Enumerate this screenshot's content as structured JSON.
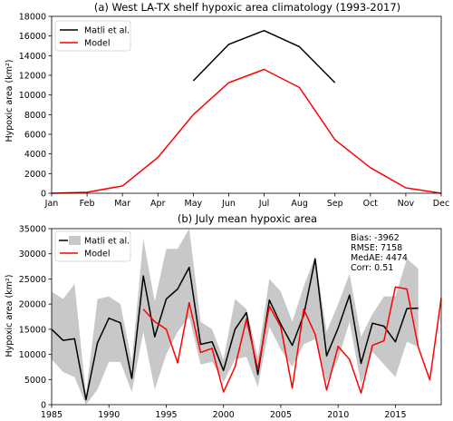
{
  "chart_data": [
    {
      "type": "line",
      "title": "(a) West LA-TX shelf hypoxic area climatology (1993-2017)",
      "xlabel": "",
      "ylabel": "Hypoxic area (km²)",
      "categories": [
        "Jan",
        "Feb",
        "Mar",
        "Apr",
        "May",
        "Jun",
        "Jul",
        "Aug",
        "Sep",
        "Oct",
        "Nov",
        "Dec"
      ],
      "ylim": [
        0,
        18000
      ],
      "yticks": [
        0,
        2000,
        4000,
        6000,
        8000,
        10000,
        12000,
        14000,
        16000,
        18000
      ],
      "legend_position": "upper-left",
      "series": [
        {
          "name": "Matli et al.",
          "color": "#000000",
          "values": [
            null,
            null,
            null,
            null,
            11450,
            15150,
            16550,
            14900,
            11250,
            null,
            null,
            null
          ]
        },
        {
          "name": "Model",
          "color": "#ff0000",
          "values": [
            0,
            100,
            750,
            3650,
            8000,
            11250,
            12600,
            10750,
            5450,
            2600,
            550,
            0
          ]
        }
      ]
    },
    {
      "type": "line",
      "title": "(b) July mean hypoxic area",
      "xlabel": "",
      "ylabel": "Hypoxic area (km²)",
      "xlim": [
        1985,
        2019
      ],
      "xticks": [
        1985,
        1990,
        1995,
        2000,
        2005,
        2010,
        2015
      ],
      "ylim": [
        0,
        35000
      ],
      "yticks": [
        0,
        5000,
        10000,
        15000,
        20000,
        25000,
        30000,
        35000
      ],
      "legend_position": "upper-left",
      "stats": [
        "Bias: -3962",
        "RMSE: 7158",
        "MedAE: 4474",
        "Corr: 0.51"
      ],
      "band": {
        "name": "",
        "color": "#c8c8c8",
        "x": [
          1985,
          1986,
          1987,
          1988,
          1989,
          1990,
          1991,
          1992,
          1993,
          1994,
          1995,
          1996,
          1997,
          1998,
          1999,
          2000,
          2001,
          2002,
          2003,
          2004,
          2005,
          2006,
          2007,
          2008,
          2009,
          2010,
          2011,
          2012,
          2013,
          2014,
          2015,
          2016,
          2017
        ],
        "upper": [
          22500,
          21000,
          24000,
          2000,
          21000,
          21500,
          20000,
          8500,
          33000,
          20500,
          31000,
          31000,
          35000,
          16500,
          15000,
          9000,
          21000,
          19000,
          9500,
          25000,
          22500,
          16500,
          23500,
          29500,
          14500,
          20000,
          26000,
          13500,
          18000,
          21500,
          21500,
          29000,
          27000
        ],
        "lower": [
          9000,
          6500,
          5500,
          0,
          3000,
          8500,
          8500,
          2500,
          14500,
          3000,
          10000,
          14500,
          17500,
          8000,
          8500,
          4500,
          9000,
          9500,
          3500,
          15500,
          11000,
          7500,
          12000,
          13000,
          4500,
          9000,
          16500,
          4000,
          10500,
          8000,
          5500,
          12500,
          11500
        ]
      },
      "series": [
        {
          "name": "Matli et al.",
          "color": "#000000",
          "x": [
            1985,
            1986,
            1987,
            1988,
            1989,
            1990,
            1991,
            1992,
            1993,
            1994,
            1995,
            1996,
            1997,
            1998,
            1999,
            2000,
            2001,
            2002,
            2003,
            2004,
            2005,
            2006,
            2007,
            2008,
            2009,
            2010,
            2011,
            2012,
            2013,
            2014,
            2015,
            2016,
            2017
          ],
          "values": [
            15000,
            12800,
            13100,
            1000,
            12300,
            17200,
            16300,
            5200,
            25600,
            13500,
            21000,
            23000,
            27300,
            12000,
            12500,
            6800,
            15000,
            18300,
            6000,
            20800,
            16000,
            11800,
            17800,
            29000,
            9700,
            15200,
            21800,
            8200,
            16200,
            15600,
            12500,
            19100,
            19200
          ]
        },
        {
          "name": "Model",
          "color": "#ff0000",
          "x": [
            1993,
            1994,
            1995,
            1996,
            1997,
            1998,
            1999,
            2000,
            2001,
            2002,
            2003,
            2004,
            2005,
            2006,
            2007,
            2008,
            2009,
            2010,
            2011,
            2012,
            2013,
            2014,
            2015,
            2016,
            2017,
            2018,
            2019
          ],
          "values": [
            19000,
            16500,
            15000,
            8300,
            20300,
            10400,
            11200,
            2500,
            7500,
            17000,
            7000,
            19600,
            15500,
            3300,
            19000,
            14000,
            2900,
            11600,
            9000,
            2300,
            11800,
            12700,
            23400,
            23000,
            11400,
            4900,
            21200
          ]
        }
      ]
    }
  ]
}
